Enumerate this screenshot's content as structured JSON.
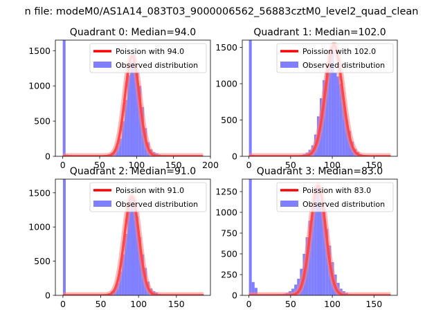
{
  "figure": {
    "suptitle": "n file: modeM0/AS1A14_083T03_9000006562_56883cztM0_level2_quad_clean",
    "colors": {
      "observed": "#7f7fff",
      "poisson": "#ff0000",
      "poisson_glow": "#ff8080",
      "axis": "#000000"
    }
  },
  "chart_data": [
    {
      "type": "bar",
      "title": "Quadrant 0: Median=94.0",
      "xlim": [
        -10,
        200
      ],
      "ylim": [
        0,
        1650
      ],
      "xticks": [
        0,
        50,
        100,
        150,
        200
      ],
      "yticks": [
        0,
        500,
        1000,
        1500
      ],
      "legend": {
        "placement": "upper-right",
        "entries": [
          "Poission with 94.0",
          "Observed distribution"
        ]
      },
      "poisson_mean": 94.0,
      "poisson_peak": 1420,
      "poisson_xrange": [
        0,
        190
      ],
      "observed": {
        "bin_width": 3.8,
        "bins": [
          {
            "x": 0,
            "count": 1650
          },
          {
            "x": 3.8,
            "count": 25
          },
          {
            "x": 7.6,
            "count": 20
          },
          {
            "x": 11.4,
            "count": 10
          },
          {
            "x": 57,
            "count": 20
          },
          {
            "x": 60.8,
            "count": 30
          },
          {
            "x": 64.6,
            "count": 50
          },
          {
            "x": 68.4,
            "count": 80
          },
          {
            "x": 72.2,
            "count": 150
          },
          {
            "x": 76,
            "count": 250
          },
          {
            "x": 79.8,
            "count": 500
          },
          {
            "x": 83.6,
            "count": 800
          },
          {
            "x": 87.4,
            "count": 1150
          },
          {
            "x": 91.2,
            "count": 1350
          },
          {
            "x": 95,
            "count": 1450
          },
          {
            "x": 98.8,
            "count": 1200
          },
          {
            "x": 102.6,
            "count": 1000
          },
          {
            "x": 106.4,
            "count": 700
          },
          {
            "x": 110.2,
            "count": 400
          },
          {
            "x": 114,
            "count": 200
          },
          {
            "x": 117.8,
            "count": 100
          },
          {
            "x": 121.6,
            "count": 60
          },
          {
            "x": 125.4,
            "count": 40
          },
          {
            "x": 129.2,
            "count": 25
          },
          {
            "x": 133,
            "count": 10
          },
          {
            "x": 136.8,
            "count": 5
          }
        ]
      }
    },
    {
      "type": "bar",
      "title": "Quadrant 1: Median=102.0",
      "xlim": [
        -8,
        178
      ],
      "ylim": [
        0,
        1600
      ],
      "xticks": [
        0,
        50,
        100,
        150
      ],
      "yticks": [
        0,
        500,
        1000,
        1500
      ],
      "legend": {
        "placement": "upper-right",
        "entries": [
          "Poission with 102.0",
          "Observed distribution"
        ]
      },
      "poisson_mean": 102.0,
      "poisson_peak": 1530,
      "poisson_xrange": [
        0,
        170
      ],
      "observed": {
        "bin_width": 3.4,
        "bins": [
          {
            "x": 0,
            "count": 1600
          },
          {
            "x": 3.4,
            "count": 20
          },
          {
            "x": 61.2,
            "count": 15
          },
          {
            "x": 64.6,
            "count": 30
          },
          {
            "x": 68,
            "count": 50
          },
          {
            "x": 71.4,
            "count": 90
          },
          {
            "x": 74.8,
            "count": 150
          },
          {
            "x": 78.2,
            "count": 300
          },
          {
            "x": 81.6,
            "count": 550
          },
          {
            "x": 85,
            "count": 800
          },
          {
            "x": 88.4,
            "count": 1050
          },
          {
            "x": 91.8,
            "count": 1250
          },
          {
            "x": 95.2,
            "count": 1450
          },
          {
            "x": 98.6,
            "count": 1500
          },
          {
            "x": 102,
            "count": 1150
          },
          {
            "x": 105.4,
            "count": 1100
          },
          {
            "x": 108.8,
            "count": 1000
          },
          {
            "x": 112.2,
            "count": 750
          },
          {
            "x": 115.6,
            "count": 500
          },
          {
            "x": 119,
            "count": 350
          },
          {
            "x": 122.4,
            "count": 200
          },
          {
            "x": 125.8,
            "count": 100
          },
          {
            "x": 129.2,
            "count": 60
          },
          {
            "x": 132.6,
            "count": 30
          },
          {
            "x": 136,
            "count": 15
          },
          {
            "x": 139.4,
            "count": 8
          }
        ]
      }
    },
    {
      "type": "bar",
      "title": "Quadrant 2: Median=91.0",
      "xlim": [
        -10,
        195
      ],
      "ylim": [
        0,
        1700
      ],
      "xticks": [
        0,
        50,
        100,
        150
      ],
      "yticks": [
        0,
        500,
        1000,
        1500
      ],
      "legend": {
        "placement": "upper-right",
        "entries": [
          "Poission with 91.0",
          "Observed distribution"
        ]
      },
      "poisson_mean": 91.0,
      "poisson_peak": 1445,
      "poisson_xrange": [
        0,
        186
      ],
      "observed": {
        "bin_width": 3.7,
        "bins": [
          {
            "x": 0,
            "count": 1700
          },
          {
            "x": 3.7,
            "count": 10
          },
          {
            "x": 55.5,
            "count": 20
          },
          {
            "x": 59.2,
            "count": 30
          },
          {
            "x": 62.9,
            "count": 60
          },
          {
            "x": 66.6,
            "count": 100
          },
          {
            "x": 70.3,
            "count": 180
          },
          {
            "x": 74,
            "count": 350
          },
          {
            "x": 77.7,
            "count": 600
          },
          {
            "x": 81.4,
            "count": 900
          },
          {
            "x": 85.1,
            "count": 1250
          },
          {
            "x": 88.8,
            "count": 1450
          },
          {
            "x": 92.5,
            "count": 1400
          },
          {
            "x": 96.2,
            "count": 1150
          },
          {
            "x": 99.9,
            "count": 850
          },
          {
            "x": 103.6,
            "count": 600
          },
          {
            "x": 107.3,
            "count": 400
          },
          {
            "x": 111,
            "count": 200
          },
          {
            "x": 114.7,
            "count": 100
          },
          {
            "x": 118.4,
            "count": 60
          },
          {
            "x": 122.1,
            "count": 40
          },
          {
            "x": 125.8,
            "count": 20
          },
          {
            "x": 129.5,
            "count": 10
          }
        ]
      }
    },
    {
      "type": "bar",
      "title": "Quadrant 3: Median=83.0",
      "xlim": [
        -8,
        178
      ],
      "ylim": [
        0,
        1400
      ],
      "xticks": [
        0,
        50,
        100,
        150
      ],
      "yticks": [
        0,
        250,
        500,
        750,
        1000,
        1250
      ],
      "legend": {
        "placement": "upper-right",
        "entries": [
          "Poission with 83.0",
          "Observed distribution"
        ]
      },
      "poisson_mean": 83.0,
      "poisson_peak": 1320,
      "poisson_xrange": [
        0,
        170
      ],
      "observed": {
        "bin_width": 3.4,
        "bins": [
          {
            "x": 0,
            "count": 1400
          },
          {
            "x": 3.4,
            "count": 160
          },
          {
            "x": 6.8,
            "count": 90
          },
          {
            "x": 20.4,
            "count": 10
          },
          {
            "x": 34,
            "count": 15
          },
          {
            "x": 40.8,
            "count": 20
          },
          {
            "x": 44.2,
            "count": 30
          },
          {
            "x": 47.6,
            "count": 50
          },
          {
            "x": 51,
            "count": 80
          },
          {
            "x": 54.4,
            "count": 130
          },
          {
            "x": 57.8,
            "count": 200
          },
          {
            "x": 61.2,
            "count": 320
          },
          {
            "x": 64.6,
            "count": 500
          },
          {
            "x": 68,
            "count": 700
          },
          {
            "x": 71.4,
            "count": 900
          },
          {
            "x": 74.8,
            "count": 1100
          },
          {
            "x": 78.2,
            "count": 1250
          },
          {
            "x": 81.6,
            "count": 1300
          },
          {
            "x": 85,
            "count": 1150
          },
          {
            "x": 88.4,
            "count": 1050
          },
          {
            "x": 91.8,
            "count": 800
          },
          {
            "x": 95.2,
            "count": 600
          },
          {
            "x": 98.6,
            "count": 400
          },
          {
            "x": 102,
            "count": 250
          },
          {
            "x": 105.4,
            "count": 150
          },
          {
            "x": 108.8,
            "count": 80
          },
          {
            "x": 112.2,
            "count": 50
          },
          {
            "x": 115.6,
            "count": 30
          },
          {
            "x": 119,
            "count": 15
          }
        ]
      }
    }
  ]
}
